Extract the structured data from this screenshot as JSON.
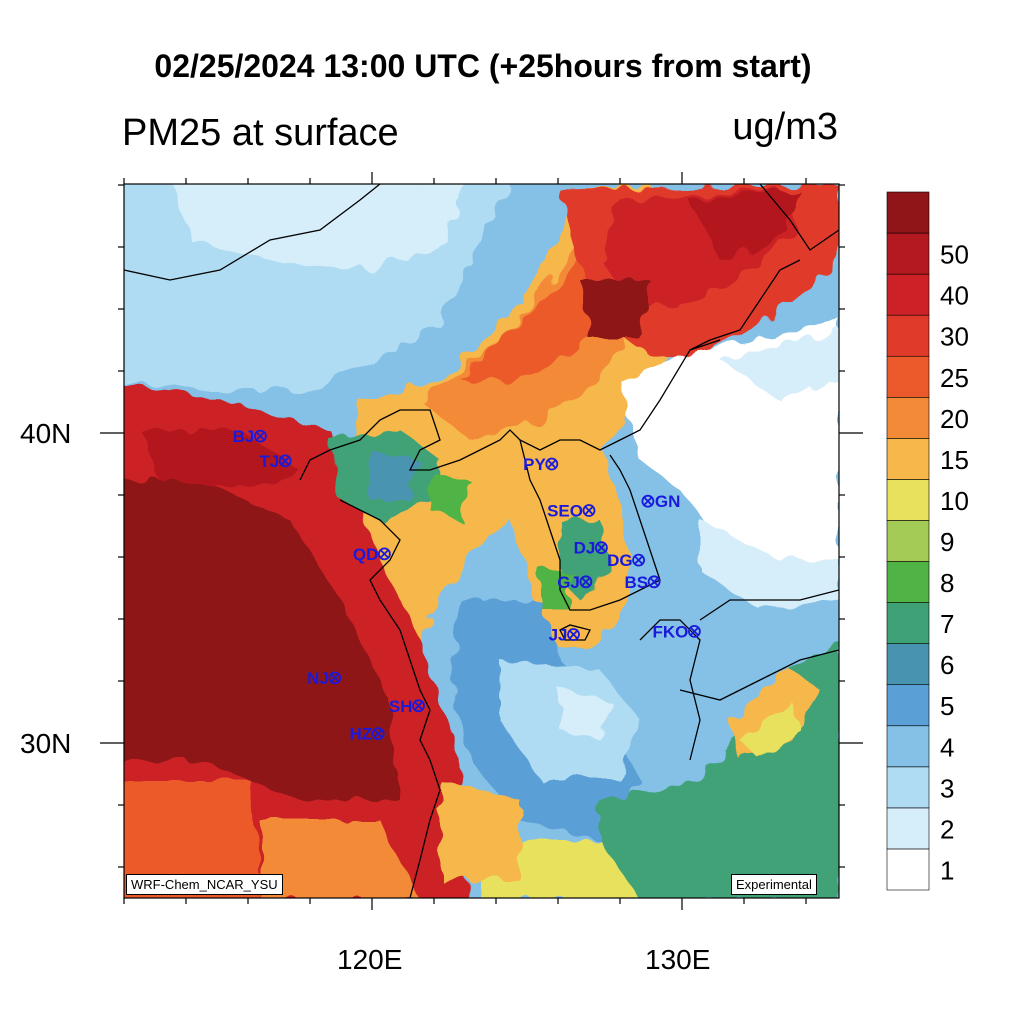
{
  "title": "02/25/2024 13:00 UTC (+25hours from start)",
  "subtitle": "PM25 at surface",
  "units": "ug/m3",
  "axes": {
    "lat_labels": [
      "40N",
      "30N"
    ],
    "lon_labels": [
      "120E",
      "130E"
    ]
  },
  "credits": {
    "model": "WRF-Chem_NCAR_YSU",
    "status": "Experimental"
  },
  "colorbar": {
    "levels": [
      "1",
      "2",
      "3",
      "4",
      "5",
      "6",
      "7",
      "8",
      "9",
      "10",
      "15",
      "20",
      "25",
      "30",
      "40",
      "50"
    ],
    "colors": [
      "#ffffff",
      "#d6edfa",
      "#b0dcf3",
      "#85c1e6",
      "#5a9fd6",
      "#4894b0",
      "#3fa276",
      "#4fb345",
      "#a3cb55",
      "#e8e15d",
      "#f6b84b",
      "#f38a38",
      "#ec5a2c",
      "#e03a2a",
      "#cc2227",
      "#b3191f",
      "#8f1518"
    ]
  },
  "stations": [
    {
      "code": "BJ",
      "lon": 116.4,
      "lat": 39.9,
      "label_side": "left"
    },
    {
      "code": "TJ",
      "lon": 117.2,
      "lat": 39.1,
      "label_side": "left"
    },
    {
      "code": "QD",
      "lon": 120.4,
      "lat": 36.1,
      "label_side": "left"
    },
    {
      "code": "NJ",
      "lon": 118.8,
      "lat": 32.1,
      "label_side": "left"
    },
    {
      "code": "SH",
      "lon": 121.5,
      "lat": 31.2,
      "label_side": "left"
    },
    {
      "code": "HZ",
      "lon": 120.2,
      "lat": 30.3,
      "label_side": "left"
    },
    {
      "code": "PY",
      "lon": 125.8,
      "lat": 39.0,
      "label_side": "left"
    },
    {
      "code": "SEO",
      "lon": 127.0,
      "lat": 37.5,
      "label_side": "left"
    },
    {
      "code": "GN",
      "lon": 128.9,
      "lat": 37.8,
      "label_side": "right"
    },
    {
      "code": "DJ",
      "lon": 127.4,
      "lat": 36.3,
      "label_side": "left"
    },
    {
      "code": "DG",
      "lon": 128.6,
      "lat": 35.9,
      "label_side": "left"
    },
    {
      "code": "GJ",
      "lon": 126.9,
      "lat": 35.2,
      "label_side": "left"
    },
    {
      "code": "BS",
      "lon": 129.1,
      "lat": 35.2,
      "label_side": "left"
    },
    {
      "code": "JJ",
      "lon": 126.5,
      "lat": 33.5,
      "label_side": "left"
    },
    {
      "code": "FKO",
      "lon": 130.4,
      "lat": 33.6,
      "label_side": "left"
    }
  ]
}
